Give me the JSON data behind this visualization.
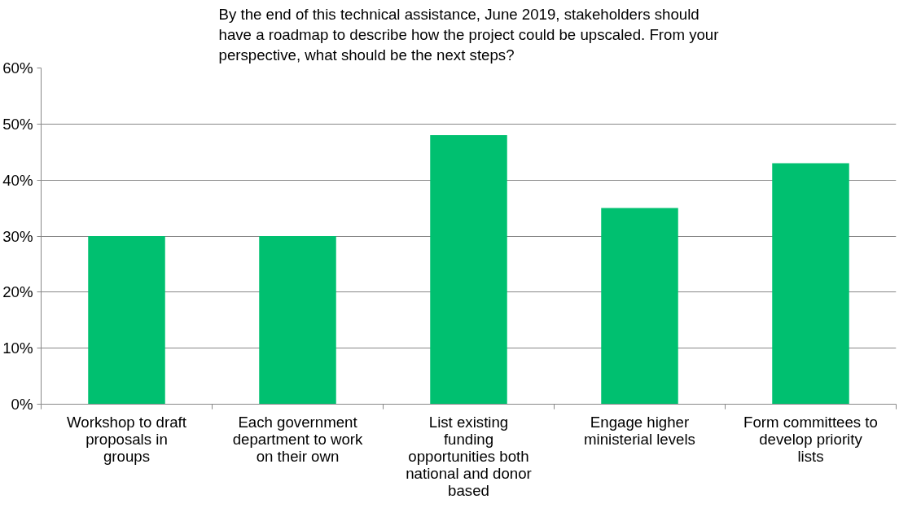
{
  "chart_data": {
    "type": "bar",
    "title": "By the end of this technical assistance, June 2019, stakeholders should have a roadmap to describe how the project could be upscaled. From your perspective, what should be the next steps?",
    "categories": [
      "Workshop to draft proposals in groups",
      "Each government department to work on their own",
      "List existing funding opportunities both national and donor based",
      "Engage higher ministerial levels",
      "Form committees to develop priority lists"
    ],
    "values": [
      30,
      30,
      48,
      35,
      43
    ],
    "color": "#00c070",
    "ylim": [
      0,
      60
    ],
    "yticks": [
      {
        "value": 0,
        "label": "0%"
      },
      {
        "value": 10,
        "label": "10%"
      },
      {
        "value": 20,
        "label": "20%"
      },
      {
        "value": 30,
        "label": "30%"
      },
      {
        "value": 40,
        "label": "40%"
      },
      {
        "value": 50,
        "label": "50%"
      },
      {
        "value": 60,
        "label": "60%"
      }
    ],
    "grid": "y"
  }
}
